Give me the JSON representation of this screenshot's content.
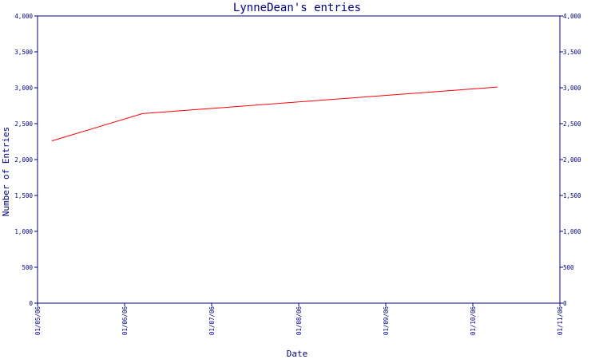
{
  "chart_data": {
    "type": "line",
    "title": "LynneDean's entries",
    "xlabel": "Date",
    "ylabel": "Number of Entries",
    "x_tick_labels": [
      "01/05/06",
      "01/06/06",
      "01/07/06",
      "01/08/06",
      "01/09/06",
      "01/10/06",
      "01/11/06"
    ],
    "y_tick_labels": [
      "0",
      "500",
      "1,000",
      "1,500",
      "2,000",
      "2,500",
      "3,000",
      "3,500",
      "4,000"
    ],
    "y_ticks": [
      0,
      500,
      1000,
      1500,
      2000,
      2500,
      3000,
      3500,
      4000
    ],
    "ylim": [
      0,
      4000
    ],
    "xlim": [
      "2006-05-01",
      "2006-11-01"
    ],
    "y_axis_both_sides": true,
    "grid": false,
    "series": [
      {
        "color": "#ff0000",
        "points": [
          {
            "x": "2006-05-06",
            "y": 2260
          },
          {
            "x": "2006-06-07",
            "y": 2640
          },
          {
            "x": "2006-10-10",
            "y": 3010
          }
        ]
      }
    ]
  }
}
